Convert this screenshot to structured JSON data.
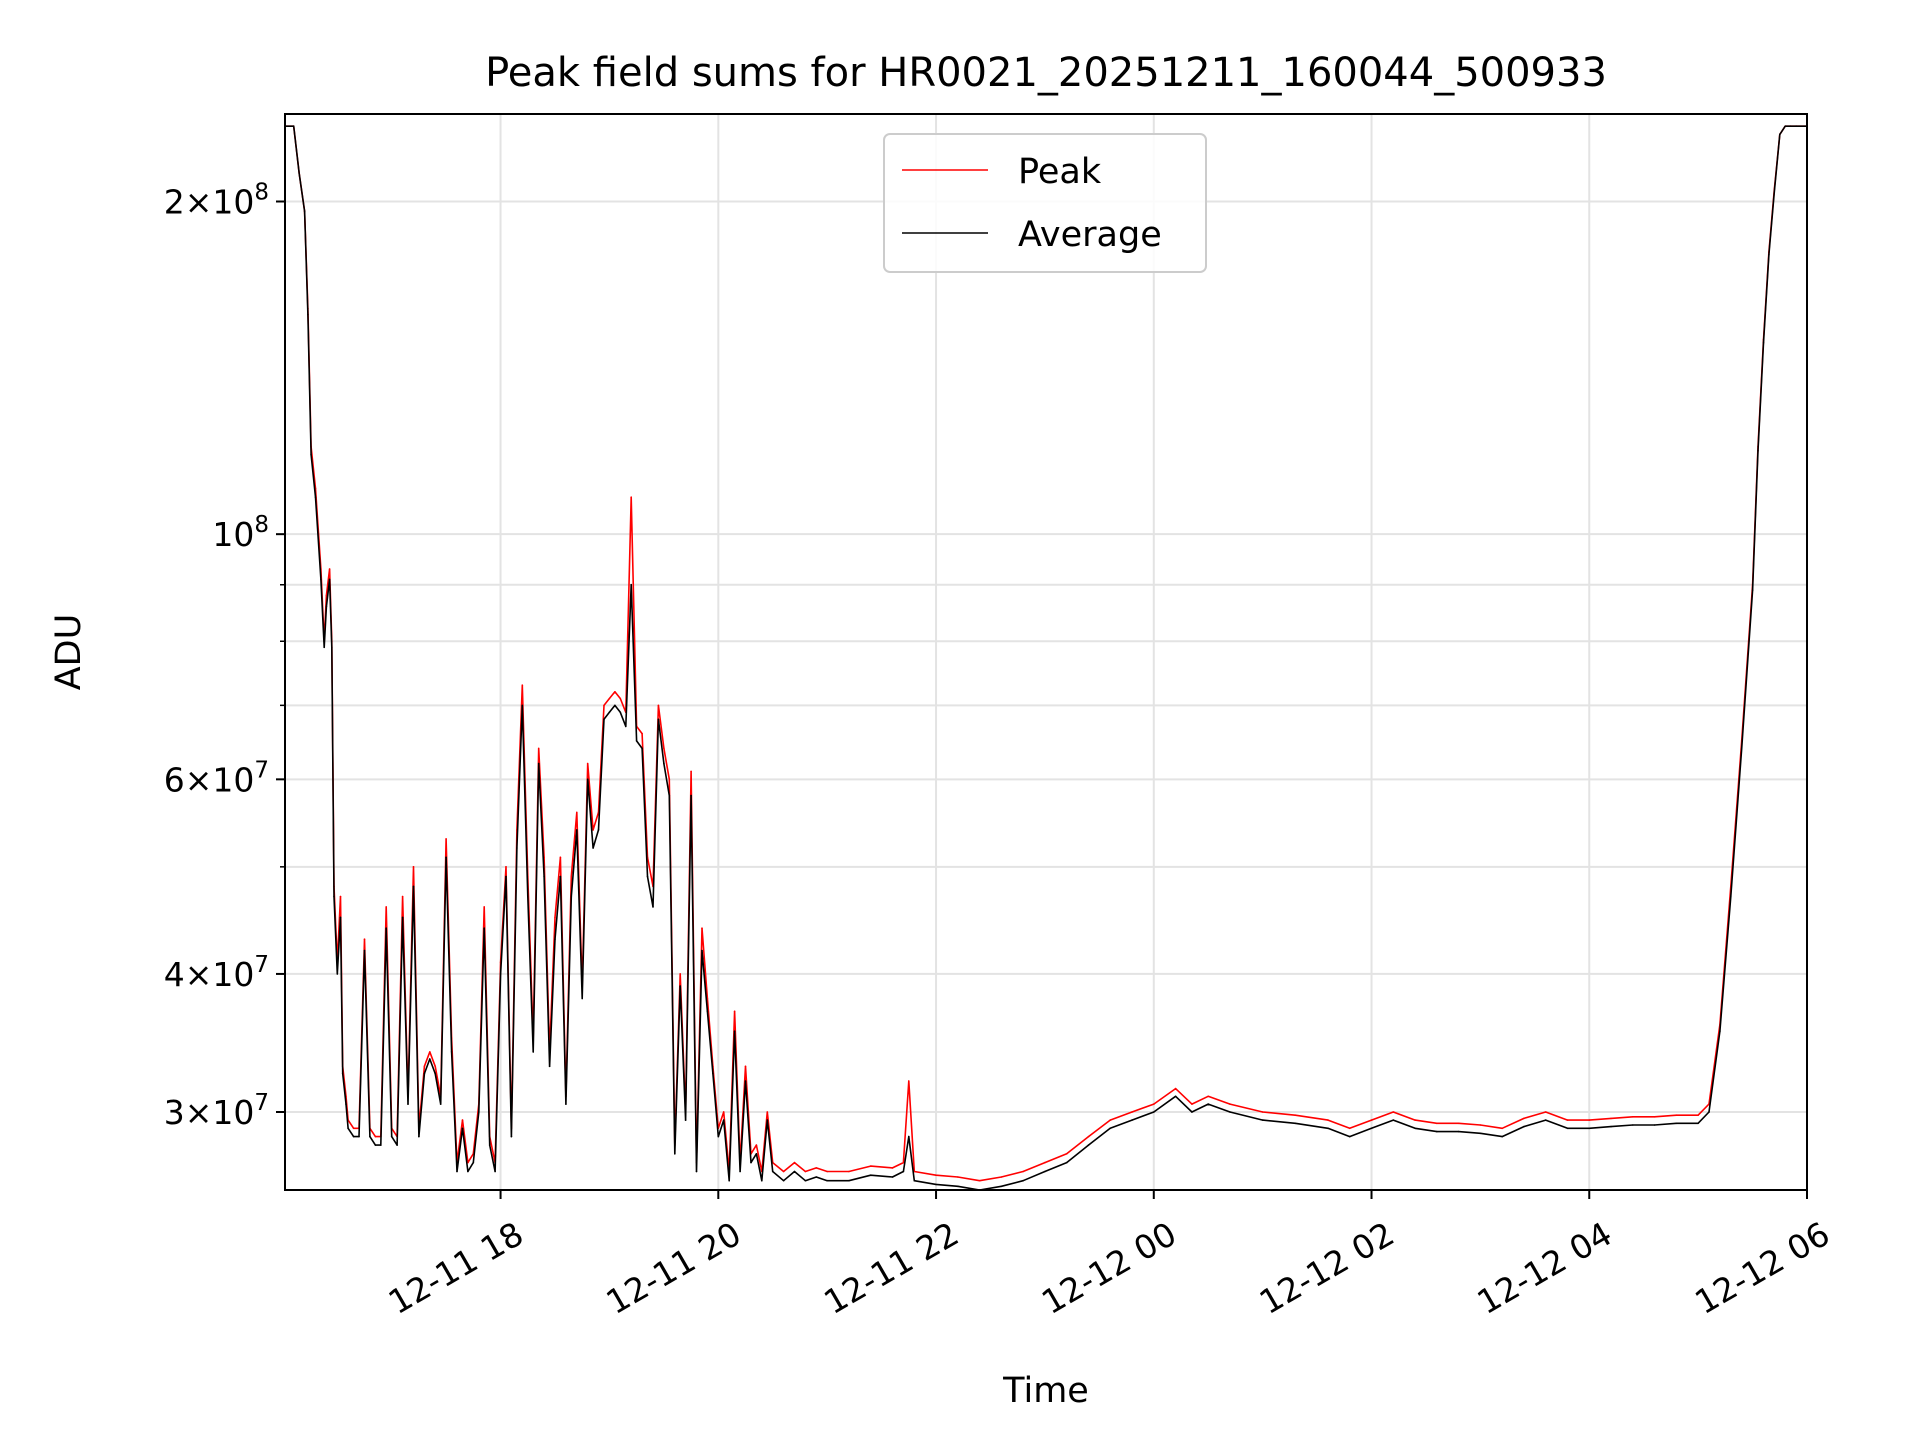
{
  "chart_data": {
    "type": "line",
    "title": "Peak field sums for HR0021_20251211_160044_500933",
    "xlabel": "Time",
    "ylabel": "ADU",
    "yscale": "log",
    "ylim": [
      25500000,
      240000000
    ],
    "xlim_hours": [
      16.02,
      30.0
    ],
    "grid": true,
    "legend_position": "upper-center",
    "x_ticks": [
      {
        "hour": 18,
        "label": "12-11 18"
      },
      {
        "hour": 20,
        "label": "12-11 20"
      },
      {
        "hour": 22,
        "label": "12-11 22"
      },
      {
        "hour": 24,
        "label": "12-12 00"
      },
      {
        "hour": 26,
        "label": "12-12 02"
      },
      {
        "hour": 28,
        "label": "12-12 04"
      },
      {
        "hour": 30,
        "label": "12-12 06"
      }
    ],
    "y_major_ticks": [
      {
        "value": 30000000,
        "mantissa": "3",
        "exponent": "7"
      },
      {
        "value": 40000000,
        "mantissa": "4",
        "exponent": "7"
      },
      {
        "value": 60000000,
        "mantissa": "6",
        "exponent": "7"
      },
      {
        "value": 100000000,
        "mantissa": "",
        "exponent": "8"
      },
      {
        "value": 200000000,
        "mantissa": "2",
        "exponent": "8"
      }
    ],
    "y_minor_gridlines": [
      50000000,
      70000000,
      80000000,
      90000000
    ],
    "series": [
      {
        "name": "Peak",
        "color": "#ff0000",
        "x_hours": [
          16.02,
          16.1,
          16.15,
          16.2,
          16.23,
          16.26,
          16.3,
          16.35,
          16.38,
          16.4,
          16.43,
          16.45,
          16.47,
          16.5,
          16.53,
          16.55,
          16.58,
          16.6,
          16.65,
          16.7,
          16.75,
          16.8,
          16.85,
          16.9,
          16.95,
          17.0,
          17.05,
          17.1,
          17.15,
          17.2,
          17.25,
          17.3,
          17.35,
          17.4,
          17.45,
          17.5,
          17.55,
          17.6,
          17.65,
          17.7,
          17.75,
          17.8,
          17.85,
          17.9,
          17.95,
          18.0,
          18.05,
          18.1,
          18.15,
          18.2,
          18.25,
          18.3,
          18.35,
          18.4,
          18.45,
          18.5,
          18.55,
          18.6,
          18.65,
          18.7,
          18.75,
          18.8,
          18.85,
          18.9,
          18.95,
          19.0,
          19.05,
          19.1,
          19.15,
          19.2,
          19.25,
          19.3,
          19.35,
          19.4,
          19.45,
          19.5,
          19.55,
          19.6,
          19.65,
          19.7,
          19.75,
          19.8,
          19.85,
          19.9,
          19.95,
          20.0,
          20.05,
          20.1,
          20.15,
          20.2,
          20.25,
          20.3,
          20.35,
          20.4,
          20.45,
          20.5,
          20.6,
          20.7,
          20.8,
          20.9,
          21.0,
          21.2,
          21.4,
          21.6,
          21.7,
          21.75,
          21.8,
          22.0,
          22.2,
          22.4,
          22.6,
          22.8,
          23.0,
          23.2,
          23.4,
          23.6,
          23.8,
          24.0,
          24.2,
          24.35,
          24.5,
          24.7,
          25.0,
          25.3,
          25.6,
          25.8,
          26.0,
          26.2,
          26.4,
          26.6,
          26.8,
          27.0,
          27.2,
          27.4,
          27.6,
          27.8,
          28.0,
          28.2,
          28.4,
          28.6,
          28.8,
          29.0,
          29.1,
          29.2,
          29.3,
          29.4,
          29.5,
          29.55,
          29.6,
          29.65,
          29.7,
          29.75,
          29.8,
          29.85,
          29.9,
          30.0
        ],
        "values": [
          234000000,
          234000000,
          212000000,
          196000000,
          160000000,
          120000000,
          110000000,
          93000000,
          80000000,
          88000000,
          93000000,
          80000000,
          48000000,
          41000000,
          47000000,
          33000000,
          31000000,
          29500000,
          29000000,
          29000000,
          43000000,
          29000000,
          28500000,
          28500000,
          46000000,
          29000000,
          28500000,
          47000000,
          31000000,
          50000000,
          29000000,
          33000000,
          34000000,
          33000000,
          31000000,
          53000000,
          35000000,
          27000000,
          29500000,
          27000000,
          27500000,
          30500000,
          46000000,
          28500000,
          27000000,
          41000000,
          50000000,
          29000000,
          54000000,
          73000000,
          49000000,
          35000000,
          64000000,
          51000000,
          34000000,
          45000000,
          51000000,
          31000000,
          49000000,
          56000000,
          39000000,
          62000000,
          54000000,
          56000000,
          70000000,
          71000000,
          72000000,
          71000000,
          69000000,
          108000000,
          67000000,
          66000000,
          51000000,
          48000000,
          70000000,
          64000000,
          60000000,
          28000000,
          40000000,
          30000000,
          61000000,
          27000000,
          44000000,
          38000000,
          33000000,
          29000000,
          30000000,
          26500000,
          37000000,
          27000000,
          33000000,
          27500000,
          28000000,
          26500000,
          30000000,
          27000000,
          26500000,
          27000000,
          26500000,
          26700000,
          26500000,
          26500000,
          26800000,
          26700000,
          27000000,
          32000000,
          26500000,
          26300000,
          26200000,
          26000000,
          26200000,
          26500000,
          27000000,
          27500000,
          28500000,
          29500000,
          30000000,
          30500000,
          31500000,
          30500000,
          31000000,
          30500000,
          30000000,
          29800000,
          29500000,
          29000000,
          29500000,
          30000000,
          29500000,
          29300000,
          29300000,
          29200000,
          29000000,
          29600000,
          30000000,
          29500000,
          29500000,
          29600000,
          29700000,
          29700000,
          29800000,
          29800000,
          30500000,
          36000000,
          48000000,
          65000000,
          90000000,
          120000000,
          150000000,
          180000000,
          205000000,
          230000000,
          234000000,
          234000000,
          234000000,
          234000000
        ]
      },
      {
        "name": "Average",
        "color": "#000000",
        "x_hours": [
          16.02,
          16.1,
          16.15,
          16.2,
          16.23,
          16.26,
          16.3,
          16.35,
          16.38,
          16.4,
          16.43,
          16.45,
          16.47,
          16.5,
          16.53,
          16.55,
          16.58,
          16.6,
          16.65,
          16.7,
          16.75,
          16.8,
          16.85,
          16.9,
          16.95,
          17.0,
          17.05,
          17.1,
          17.15,
          17.2,
          17.25,
          17.3,
          17.35,
          17.4,
          17.45,
          17.5,
          17.55,
          17.6,
          17.65,
          17.7,
          17.75,
          17.8,
          17.85,
          17.9,
          17.95,
          18.0,
          18.05,
          18.1,
          18.15,
          18.2,
          18.25,
          18.3,
          18.35,
          18.4,
          18.45,
          18.5,
          18.55,
          18.6,
          18.65,
          18.7,
          18.75,
          18.8,
          18.85,
          18.9,
          18.95,
          19.0,
          19.05,
          19.1,
          19.15,
          19.2,
          19.25,
          19.3,
          19.35,
          19.4,
          19.45,
          19.5,
          19.55,
          19.6,
          19.65,
          19.7,
          19.75,
          19.8,
          19.85,
          19.9,
          19.95,
          20.0,
          20.05,
          20.1,
          20.15,
          20.2,
          20.25,
          20.3,
          20.35,
          20.4,
          20.45,
          20.5,
          20.6,
          20.7,
          20.8,
          20.9,
          21.0,
          21.2,
          21.4,
          21.6,
          21.7,
          21.75,
          21.8,
          22.0,
          22.2,
          22.4,
          22.6,
          22.8,
          23.0,
          23.2,
          23.4,
          23.6,
          23.8,
          24.0,
          24.2,
          24.35,
          24.5,
          24.7,
          25.0,
          25.3,
          25.6,
          25.8,
          26.0,
          26.2,
          26.4,
          26.6,
          26.8,
          27.0,
          27.2,
          27.4,
          27.6,
          27.8,
          28.0,
          28.2,
          28.4,
          28.6,
          28.8,
          29.0,
          29.1,
          29.2,
          29.3,
          29.4,
          29.5,
          29.55,
          29.6,
          29.65,
          29.7,
          29.75,
          29.8,
          29.85,
          29.9,
          30.0
        ],
        "values": [
          234000000,
          234000000,
          212000000,
          196000000,
          158000000,
          118000000,
          108000000,
          91000000,
          79000000,
          86000000,
          91000000,
          79000000,
          47000000,
          40000000,
          45000000,
          32500000,
          30500000,
          29000000,
          28500000,
          28500000,
          42000000,
          28500000,
          28000000,
          28000000,
          44000000,
          28500000,
          28000000,
          45000000,
          30500000,
          48000000,
          28500000,
          32500000,
          33500000,
          32500000,
          30500000,
          51000000,
          34000000,
          26500000,
          29000000,
          26500000,
          27000000,
          30000000,
          44000000,
          28000000,
          26500000,
          40000000,
          49000000,
          28500000,
          52000000,
          70000000,
          47000000,
          34000000,
          62000000,
          49000000,
          33000000,
          43000000,
          49000000,
          30500000,
          47000000,
          54000000,
          38000000,
          60000000,
          52000000,
          54000000,
          68000000,
          69000000,
          70000000,
          69000000,
          67000000,
          90000000,
          65000000,
          64000000,
          49000000,
          46000000,
          68000000,
          62000000,
          58000000,
          27500000,
          39000000,
          29500000,
          58000000,
          26500000,
          42000000,
          37000000,
          32500000,
          28500000,
          29500000,
          26000000,
          35500000,
          26500000,
          32000000,
          27000000,
          27500000,
          26000000,
          29500000,
          26500000,
          26000000,
          26500000,
          26000000,
          26200000,
          26000000,
          26000000,
          26300000,
          26200000,
          26500000,
          28500000,
          26000000,
          25800000,
          25700000,
          25500000,
          25700000,
          26000000,
          26500000,
          27000000,
          28000000,
          29000000,
          29500000,
          30000000,
          31000000,
          30000000,
          30500000,
          30000000,
          29500000,
          29300000,
          29000000,
          28500000,
          29000000,
          29500000,
          29000000,
          28800000,
          28800000,
          28700000,
          28500000,
          29100000,
          29500000,
          29000000,
          29000000,
          29100000,
          29200000,
          29200000,
          29300000,
          29300000,
          30000000,
          35500000,
          47000000,
          64000000,
          89000000,
          119000000,
          149000000,
          179000000,
          204000000,
          230000000,
          234000000,
          234000000,
          234000000,
          234000000
        ]
      }
    ]
  }
}
